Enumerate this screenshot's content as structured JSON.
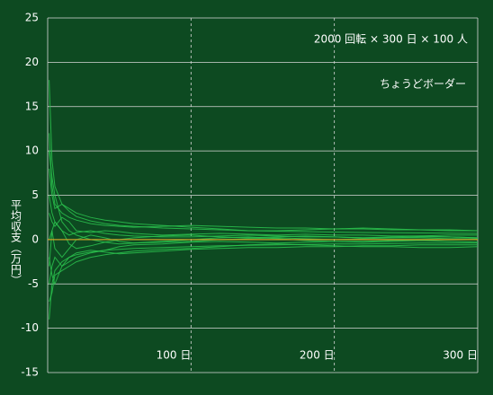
{
  "chart_data": {
    "type": "line",
    "annotations": [
      "2000 回転 × 300 日 × 100 人",
      "ちょうどボーダー"
    ],
    "ylabel": "平均収支（万円）",
    "color": "#2bc24e",
    "zero_line_color": "#c9a227",
    "grid": true,
    "xlim": [
      0,
      300
    ],
    "xticks": [
      {
        "value": 100,
        "label": "100 日"
      },
      {
        "value": 200,
        "label": "200 日"
      },
      {
        "value": 300,
        "label": "300 日"
      }
    ],
    "ylim": [
      -15,
      25
    ],
    "yticks": [
      -15,
      -10,
      -5,
      0,
      5,
      10,
      15,
      20,
      25
    ],
    "x": [
      1,
      3,
      5,
      10,
      15,
      20,
      30,
      40,
      50,
      60,
      80,
      100,
      120,
      140,
      160,
      180,
      200,
      220,
      240,
      260,
      280,
      300
    ],
    "series": [
      {
        "values": [
          18,
          9,
          6,
          4,
          3.2,
          2.6,
          2.1,
          1.8,
          1.6,
          1.5,
          1.3,
          1.2,
          1.1,
          1.0,
          0.95,
          0.9,
          0.85,
          0.8,
          0.78,
          0.75,
          0.72,
          0.7
        ]
      },
      {
        "values": [
          -9,
          -5,
          -3.5,
          -2.5,
          -2,
          -1.7,
          -1.4,
          -1.2,
          -1.1,
          -1,
          -0.9,
          -0.8,
          -0.7,
          -0.65,
          -0.6,
          -0.55,
          -0.5,
          -0.5,
          -0.45,
          -0.4,
          -0.4,
          -0.4
        ]
      },
      {
        "values": [
          12,
          6,
          4,
          3,
          2.5,
          2.2,
          1.8,
          1.6,
          1.5,
          1.4,
          1.5,
          1.6,
          1.5,
          1.4,
          1.3,
          1.3,
          1.2,
          1.2,
          1.1,
          1.1,
          1.0,
          1.0
        ]
      },
      {
        "values": [
          -5,
          -3,
          -2,
          -3,
          -2.5,
          -2,
          -1.5,
          -1.2,
          -0.8,
          -0.6,
          -0.5,
          -0.3,
          -0.2,
          -0.3,
          -0.4,
          -0.3,
          -0.2,
          -0.2,
          -0.1,
          -0.1,
          0,
          0
        ]
      },
      {
        "values": [
          5,
          3,
          2,
          1,
          0.5,
          0.8,
          1,
          0.7,
          0.5,
          0.4,
          0.3,
          0.3,
          0.4,
          0.5,
          0.4,
          0.3,
          0.3,
          0.2,
          0.2,
          0.3,
          0.3,
          0.2
        ]
      },
      {
        "values": [
          -2,
          -4,
          -5,
          -3,
          -2,
          -1.5,
          -1.2,
          -1.4,
          -1.6,
          -1.5,
          -1.3,
          -1.1,
          -1.0,
          -0.9,
          -0.9,
          -0.8,
          -0.8,
          -0.7,
          -0.7,
          -0.6,
          -0.6,
          -0.6
        ]
      },
      {
        "values": [
          8,
          5,
          3.5,
          4,
          3.5,
          3,
          2.5,
          2.2,
          2,
          1.8,
          1.6,
          1.4,
          1.2,
          1.0,
          1.0,
          1.1,
          1.2,
          1.3,
          1.2,
          1.1,
          1.1,
          1.0
        ]
      },
      {
        "values": [
          0,
          1,
          -1,
          -2,
          -1,
          0,
          0.5,
          0.2,
          -0.2,
          -0.4,
          -0.3,
          -0.2,
          0,
          0.1,
          0.2,
          0.1,
          0,
          0.1,
          0.2,
          0.2,
          0.1,
          0.1
        ]
      },
      {
        "values": [
          3,
          2,
          1.5,
          2.5,
          2,
          1,
          0.8,
          1,
          0.9,
          0.7,
          0.5,
          0.6,
          0.7,
          0.6,
          0.5,
          0.6,
          0.5,
          0.5,
          0.4,
          0.4,
          0.5,
          0.5
        ]
      },
      {
        "values": [
          -7,
          -6,
          -4,
          -3.5,
          -3,
          -2.5,
          -2,
          -1.7,
          -1.5,
          -1.3,
          -1.1,
          -1,
          -0.8,
          -0.6,
          -0.5,
          -0.6,
          -0.7,
          -0.8,
          -0.8,
          -0.9,
          -0.9,
          -0.8
        ]
      },
      {
        "values": [
          10,
          7,
          5,
          2,
          1,
          0.5,
          0,
          -0.3,
          -0.5,
          -0.4,
          -0.2,
          0,
          0.2,
          0.3,
          0.1,
          -0.1,
          -0.2,
          -0.3,
          -0.2,
          -0.1,
          -0.2,
          -0.3
        ]
      },
      {
        "values": [
          -3,
          1,
          2,
          1,
          -0.5,
          -1,
          -0.7,
          -0.3,
          0,
          0.2,
          0.4,
          0.5,
          0.3,
          0.2,
          0.3,
          0.4,
          0.3,
          0.2,
          0.3,
          0.4,
          0.3,
          0.2
        ]
      }
    ]
  }
}
